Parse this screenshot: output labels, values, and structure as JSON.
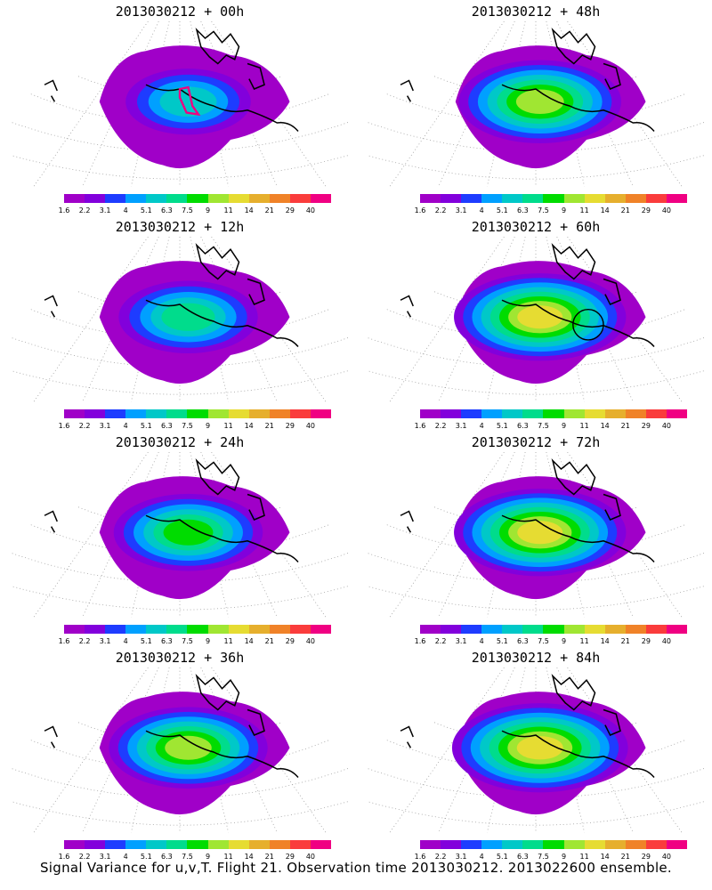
{
  "panels": [
    {
      "title": "2013030212 + 00h",
      "intensity": 0.35,
      "magenta_outline": true,
      "circle": false
    },
    {
      "title": "2013030212 + 48h",
      "intensity": 0.75,
      "magenta_outline": false,
      "circle": false
    },
    {
      "title": "2013030212 + 12h",
      "intensity": 0.5,
      "magenta_outline": false,
      "circle": false
    },
    {
      "title": "2013030212 + 60h",
      "intensity": 0.85,
      "magenta_outline": false,
      "circle": true
    },
    {
      "title": "2013030212 + 24h",
      "intensity": 0.6,
      "magenta_outline": false,
      "circle": false
    },
    {
      "title": "2013030212 + 72h",
      "intensity": 0.85,
      "magenta_outline": false,
      "circle": false
    },
    {
      "title": "2013030212 + 36h",
      "intensity": 0.7,
      "magenta_outline": false,
      "circle": false
    },
    {
      "title": "2013030212 + 84h",
      "intensity": 0.9,
      "magenta_outline": false,
      "circle": false
    }
  ],
  "colorbar": {
    "colors": [
      "#a000c8",
      "#8200dc",
      "#1e3cff",
      "#00a0ff",
      "#00c8c8",
      "#00dc8c",
      "#00dc00",
      "#a0e632",
      "#e6dc32",
      "#e6af2d",
      "#f08228",
      "#fa3c3c",
      "#f00082"
    ],
    "labels": [
      "1.6",
      "2.2",
      "3.1",
      "4",
      "5.1",
      "6.3",
      "7.5",
      "9",
      "11",
      "14",
      "21",
      "29",
      "40"
    ]
  },
  "caption": "Signal Variance for u,v,T. Flight 21. Observation time 2013030212. 2013022600 ensemble."
}
